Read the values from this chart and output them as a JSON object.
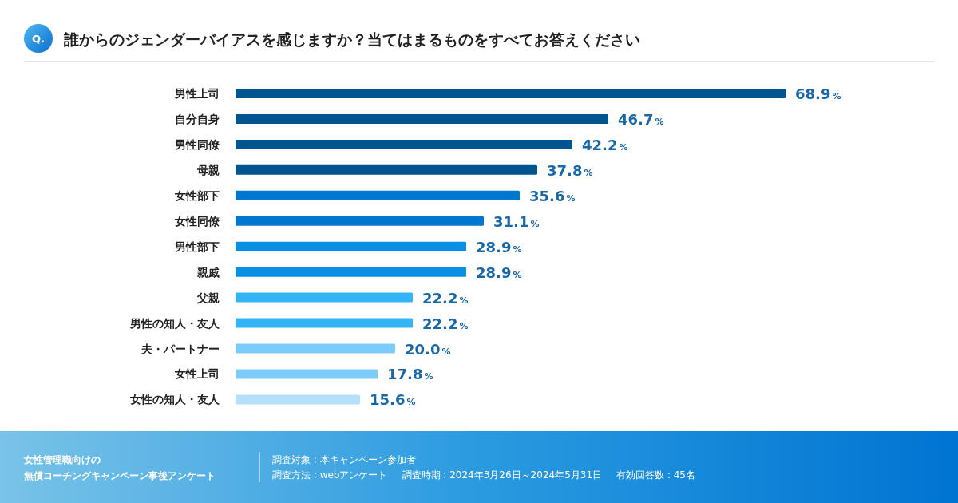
{
  "chart_data": {
    "type": "bar",
    "orientation": "horizontal",
    "title": "誰からのジェンダーバイアスを感じますか？当てはまるものをすべてお答えください",
    "categories": [
      "男性上司",
      "自分自身",
      "男性同僚",
      "母親",
      "女性部下",
      "女性同僚",
      "男性部下",
      "親戚",
      "父親",
      "男性の知人・友人",
      "夫・パートナー",
      "女性上司",
      "女性の知人・友人"
    ],
    "values": [
      68.9,
      46.7,
      42.2,
      37.8,
      35.6,
      31.1,
      28.9,
      28.9,
      22.2,
      22.2,
      20.0,
      17.8,
      15.6
    ],
    "value_labels": [
      "68.9%",
      "46.7%",
      "42.2%",
      "37.8%",
      "35.6%",
      "31.1%",
      "28.9%",
      "28.9%",
      "22.2%",
      "22.2%",
      "20.0%",
      "17.8%",
      "15.6%"
    ],
    "colors": [
      "#00548f",
      "#00548f",
      "#00548f",
      "#00548f",
      "#0078d0",
      "#0078d0",
      "#0a90e2",
      "#0a90e2",
      "#32b4f6",
      "#32b4f6",
      "#7ccbfa",
      "#7ccbfa",
      "#b5e0fb"
    ],
    "annotations": [
      "Q.",
      "女性管理職向けの",
      "無償コーチングキャンペーン事後アンケート",
      "調査対象 : 本キャンペーン参加者",
      "調査方法 : webアンケート",
      "調査時期 : 2024年3月26日～2024年5月31日",
      "有効回答数 : 45名"
    ]
  }
}
